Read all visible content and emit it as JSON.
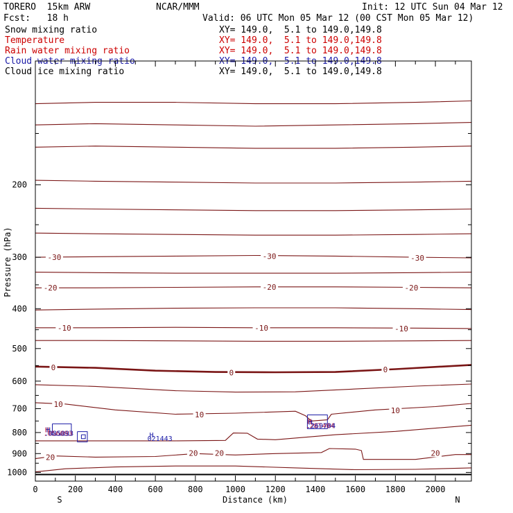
{
  "header": {
    "model": "TORERO  15km ARW",
    "org": "NCAR/MMM",
    "init": "Init: 12 UTC Sun 04 Mar 12",
    "fcst": "Fcst:   18 h",
    "valid": "Valid: 06 UTC Mon 05 Mar 12 (00 CST Mon 05 Mar 12)"
  },
  "fields": [
    {
      "name": "Snow mixing ratio",
      "color": "#000000",
      "xy": "XY= 149.0,  5.1 to 149.0,149.8"
    },
    {
      "name": "Temperature",
      "color": "#cc0000",
      "xy": "XY= 149.0,  5.1 to 149.0,149.8"
    },
    {
      "name": "Rain water mixing ratio",
      "color": "#cc0000",
      "xy": "XY= 149.0,  5.1 to 149.0,149.8"
    },
    {
      "name": "Cloud water mixing ratio",
      "color": "#1a1aa6",
      "xy": "XY= 149.0,  5.1 to 149.0,149.8"
    },
    {
      "name": "Cloud ice mixing ratio",
      "color": "#000000",
      "xy": "XY= 149.0,  5.1 to 149.0,149.8"
    }
  ],
  "chart_data": {
    "type": "line",
    "title": "",
    "xlabel": "Distance (km)",
    "ylabel": "Pressure (hPa)",
    "xlim": [
      0,
      2180
    ],
    "ylim": [
      1050,
      100
    ],
    "y_scale": "log",
    "x_ticks": [
      "0",
      "200",
      "400",
      "600",
      "800",
      "1000",
      "1200",
      "1400",
      "1600",
      "1800",
      "2000"
    ],
    "y_ticks": [
      "200",
      "300",
      "400",
      "500",
      "600",
      "700",
      "800",
      "900",
      "1000"
    ],
    "end_labels": {
      "left": "S",
      "right": "N"
    },
    "line_color": "#7a1515",
    "surface_pressure": 1012,
    "contour_labels": [
      {
        "text": "-30",
        "x": 95,
        "p": 300
      },
      {
        "text": "-30",
        "x": 1170,
        "p": 298
      },
      {
        "text": "-30",
        "x": 1910,
        "p": 301
      },
      {
        "text": "-20",
        "x": 75,
        "p": 356
      },
      {
        "text": "-20",
        "x": 1170,
        "p": 354
      },
      {
        "text": "-20",
        "x": 1880,
        "p": 356
      },
      {
        "text": "-10",
        "x": 145,
        "p": 445
      },
      {
        "text": "-10",
        "x": 1130,
        "p": 445
      },
      {
        "text": "-10",
        "x": 1830,
        "p": 447
      },
      {
        "text": "0",
        "x": 90,
        "p": 556
      },
      {
        "text": "0",
        "x": 980,
        "p": 572
      },
      {
        "text": "0",
        "x": 1750,
        "p": 562
      },
      {
        "text": "10",
        "x": 115,
        "p": 683
      },
      {
        "text": "10",
        "x": 820,
        "p": 724
      },
      {
        "text": "10",
        "x": 1800,
        "p": 707
      },
      {
        "text": "20",
        "x": 75,
        "p": 918
      },
      {
        "text": "20",
        "x": 790,
        "p": 898
      },
      {
        "text": "20",
        "x": 920,
        "p": 897
      },
      {
        "text": "20",
        "x": 2000,
        "p": 897
      }
    ],
    "cloud_water_labels": [
      {
        "text": "H",
        "x": 55,
        "p": 787
      },
      {
        "text": ".085093",
        "x": 45,
        "p": 802
      },
      {
        "text": "H",
        "x": 570,
        "p": 810
      },
      {
        "text": "021443",
        "x": 560,
        "p": 825
      },
      {
        "text": "H",
        "x": 1365,
        "p": 753
      },
      {
        "text": ".269704",
        "x": 1355,
        "p": 768
      }
    ],
    "rain_labels": [
      {
        "text": "H",
        "x": 48,
        "p": 787
      },
      {
        "text": ".056093",
        "x": 40,
        "p": 802
      },
      {
        "text": "H",
        "x": 1360,
        "p": 750
      },
      {
        "text": ".28T404",
        "x": 1350,
        "p": 768
      }
    ],
    "temperature_contours": [
      {
        "value": -60,
        "x": [
          0,
          300,
          700,
          1100,
          1500,
          1900,
          2180
        ],
        "p": [
          127,
          126,
          126,
          127,
          127,
          126,
          125
        ]
      },
      {
        "value": -55,
        "x": [
          0,
          300,
          700,
          1100,
          1500,
          1900,
          2180
        ],
        "p": [
          143,
          142,
          143,
          144,
          143,
          142,
          141
        ]
      },
      {
        "value": -50,
        "x": [
          0,
          300,
          700,
          1100,
          1500,
          1900,
          2180
        ],
        "p": [
          162,
          161,
          162,
          163,
          163,
          162,
          161
        ]
      },
      {
        "value": -45,
        "x": [
          0,
          300,
          700,
          1100,
          1500,
          1900,
          2180
        ],
        "p": [
          195,
          196,
          197,
          198,
          198,
          197,
          196
        ]
      },
      {
        "value": -40,
        "x": [
          0,
          300,
          700,
          1100,
          1500,
          1900,
          2180
        ],
        "p": [
          228,
          229,
          230,
          231,
          231,
          230,
          229
        ]
      },
      {
        "value": -35,
        "x": [
          0,
          300,
          700,
          1100,
          1500,
          1900,
          2180
        ],
        "p": [
          262,
          263,
          264,
          265,
          265,
          264,
          263
        ]
      },
      {
        "value": -30,
        "x": [
          0,
          300,
          700,
          1100,
          1500,
          1900,
          2180
        ],
        "p": [
          300,
          299,
          298,
          297,
          298,
          300,
          301
        ]
      },
      {
        "value": -25,
        "x": [
          0,
          300,
          700,
          1100,
          1500,
          1900,
          2180
        ],
        "p": [
          326,
          327,
          328,
          328,
          328,
          327,
          326
        ]
      },
      {
        "value": -20,
        "x": [
          0,
          300,
          700,
          1100,
          1500,
          1900,
          2180
        ],
        "p": [
          356,
          356,
          355,
          354,
          354,
          355,
          356
        ]
      },
      {
        "value": -15,
        "x": [
          0,
          300,
          700,
          1100,
          1500,
          1900,
          2180
        ],
        "p": [
          403,
          401,
          399,
          398,
          398,
          400,
          402
        ]
      },
      {
        "value": -10,
        "x": [
          0,
          300,
          700,
          1100,
          1500,
          1900,
          2180
        ],
        "p": [
          445,
          445,
          444,
          445,
          445,
          446,
          447
        ]
      },
      {
        "value": -5,
        "x": [
          0,
          300,
          700,
          1100,
          1500,
          1900,
          2180
        ],
        "p": [
          478,
          478,
          479,
          480,
          480,
          479,
          478
        ]
      },
      {
        "value": 0,
        "x": [
          0,
          300,
          600,
          900,
          1200,
          1500,
          1800,
          2180
        ],
        "p": [
          553,
          557,
          566,
          570,
          571,
          570,
          561,
          548
        ]
      },
      {
        "value": 5,
        "x": [
          0,
          300,
          700,
          1000,
          1300,
          1600,
          1900,
          2180
        ],
        "p": [
          612,
          618,
          633,
          638,
          637,
          627,
          617,
          610
        ]
      },
      {
        "value": 10,
        "x": [
          0,
          150,
          400,
          700,
          1000,
          1300,
          1350,
          1380,
          1460,
          1480,
          1700,
          2000,
          2180
        ],
        "p": [
          677,
          682,
          705,
          722,
          718,
          710,
          728,
          750,
          745,
          722,
          705,
          692,
          680
        ]
      },
      {
        "value": 15,
        "x": [
          0,
          300,
          700,
          950,
          990,
          1060,
          1110,
          1200,
          1500,
          1800,
          2180
        ],
        "p": [
          838,
          838,
          838,
          836,
          802,
          803,
          830,
          833,
          810,
          795,
          768
        ]
      },
      {
        "value": 20,
        "x": [
          0,
          100,
          300,
          600,
          800,
          1000,
          1200,
          1430,
          1470,
          1600,
          1630,
          1640,
          1900,
          2100,
          2180
        ],
        "p": [
          926,
          912,
          918,
          915,
          900,
          907,
          900,
          895,
          875,
          878,
          885,
          930,
          930,
          905,
          905
        ]
      },
      {
        "value": 25,
        "x": [
          0,
          150,
          400,
          700,
          1000,
          1300,
          1600,
          1900,
          2180
        ],
        "p": [
          997,
          980,
          970,
          965,
          965,
          975,
          985,
          983,
          975
        ]
      }
    ],
    "cloud_water_contours": [
      {
        "x": [
          85,
          180,
          180,
          85,
          85
        ],
        "p": [
          762,
          762,
          812,
          812,
          762
        ]
      },
      {
        "x": [
          210,
          260,
          260,
          210,
          210
        ],
        "p": [
          796,
          796,
          843,
          843,
          796
        ]
      },
      {
        "x": [
          1360,
          1460,
          1460,
          1360,
          1360
        ],
        "p": [
          725,
          725,
          783,
          783,
          725
        ]
      }
    ],
    "rain_contours": [
      {
        "x": [
          230,
          250,
          250,
          230,
          230
        ],
        "p": [
          810,
          810,
          828,
          828,
          810
        ]
      }
    ]
  }
}
